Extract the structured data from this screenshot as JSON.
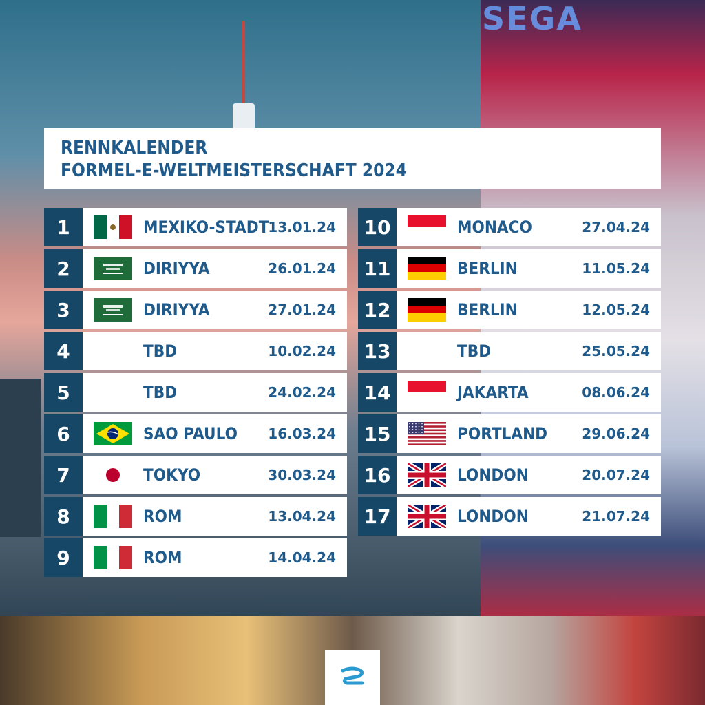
{
  "header": {
    "line1": "RENNKALENDER",
    "line2": "FORMEL-E-WELTMEISTERSCHAFT 2024"
  },
  "background_signage": "SEGA",
  "races": [
    {
      "round": "1",
      "city": "MEXIKO-STADT",
      "date": "13.01.24",
      "flag": "mexico-flag"
    },
    {
      "round": "2",
      "city": "DIRIYYA",
      "date": "26.01.24",
      "flag": "saudi-arabia-flag"
    },
    {
      "round": "3",
      "city": "DIRIYYA",
      "date": "27.01.24",
      "flag": "saudi-arabia-flag"
    },
    {
      "round": "4",
      "city": "TBD",
      "date": "10.02.24",
      "flag": ""
    },
    {
      "round": "5",
      "city": "TBD",
      "date": "24.02.24",
      "flag": ""
    },
    {
      "round": "6",
      "city": "SAO PAULO",
      "date": "16.03.24",
      "flag": "brazil-flag"
    },
    {
      "round": "7",
      "city": "TOKYO",
      "date": "30.03.24",
      "flag": "japan-flag"
    },
    {
      "round": "8",
      "city": "ROM",
      "date": "13.04.24",
      "flag": "italy-flag"
    },
    {
      "round": "9",
      "city": "ROM",
      "date": "14.04.24",
      "flag": "italy-flag"
    },
    {
      "round": "10",
      "city": "MONACO",
      "date": "27.04.24",
      "flag": "monaco-flag"
    },
    {
      "round": "11",
      "city": "BERLIN",
      "date": "11.05.24",
      "flag": "germany-flag"
    },
    {
      "round": "12",
      "city": "BERLIN",
      "date": "12.05.24",
      "flag": "germany-flag"
    },
    {
      "round": "13",
      "city": "TBD",
      "date": "25.05.24",
      "flag": ""
    },
    {
      "round": "14",
      "city": "JAKARTA",
      "date": "08.06.24",
      "flag": "indonesia-flag"
    },
    {
      "round": "15",
      "city": "PORTLAND",
      "date": "29.06.24",
      "flag": "usa-flag"
    },
    {
      "round": "16",
      "city": "LONDON",
      "date": "20.07.24",
      "flag": "uk-flag"
    },
    {
      "round": "17",
      "city": "LONDON",
      "date": "21.07.24",
      "flag": "uk-flag"
    }
  ],
  "logo": {
    "name": "formula-e-logo-icon"
  },
  "colors": {
    "number_bg": "#174767",
    "text": "#1f5a8a",
    "card_bg": "#ffffff"
  }
}
